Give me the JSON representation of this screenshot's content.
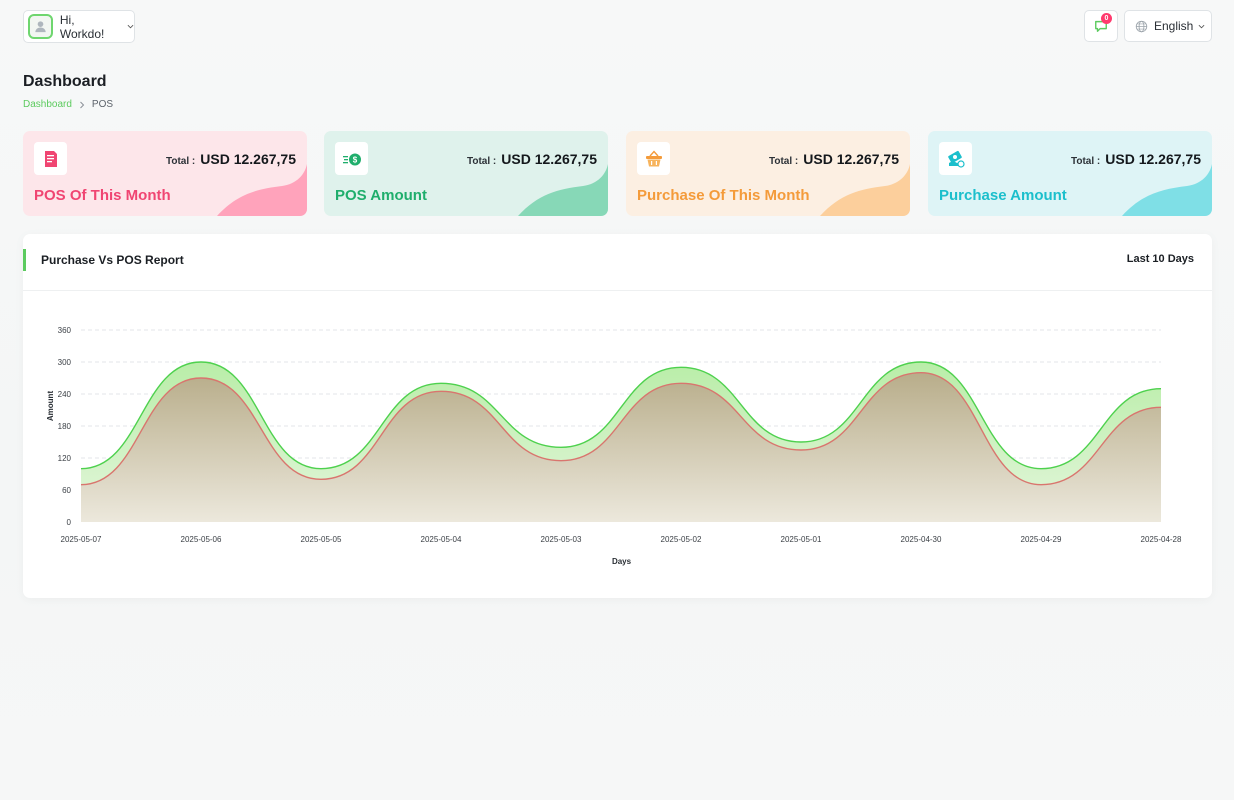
{
  "header": {
    "greeting": "Hi, Workdo!",
    "notifications_count": "0",
    "language": "English"
  },
  "page": {
    "title": "Dashboard",
    "breadcrumb": [
      "Dashboard",
      "POS"
    ]
  },
  "colors": {
    "accent": "#5ccb5f",
    "pos_green_line": "#4ed14e",
    "pos_red_line": "#d9756e"
  },
  "cards": [
    {
      "title": "POS Of This Month",
      "total_label": "Total :",
      "total_value": "USD 12.267,75",
      "icon": "invoice-icon",
      "bg": "#fde6ea",
      "wave": "#ffa3bb",
      "title_color": "#f04572"
    },
    {
      "title": "POS Amount",
      "total_label": "Total :",
      "total_value": "USD 12.267,75",
      "icon": "money-icon",
      "bg": "#dff2ec",
      "wave": "#87d8b7",
      "title_color": "#1fae6c"
    },
    {
      "title": "Purchase Of This Month",
      "total_label": "Total :",
      "total_value": "USD 12.267,75",
      "icon": "basket-icon",
      "bg": "#fcefe2",
      "wave": "#fccf9c",
      "title_color": "#f49b3a"
    },
    {
      "title": "Purchase Amount",
      "total_label": "Total :",
      "total_value": "USD 12.267,75",
      "icon": "cash-icon",
      "bg": "#def4f6",
      "wave": "#7fdfe6",
      "title_color": "#1cbfcc"
    }
  ],
  "report": {
    "title": "Purchase Vs POS Report",
    "range": "Last 10 Days"
  },
  "chart_data": {
    "type": "area",
    "xlabel": "Days",
    "ylabel": "Amount",
    "ylim": [
      0,
      360
    ],
    "yticks": [
      0,
      60,
      120,
      180,
      240,
      300,
      360
    ],
    "grid": true,
    "categories": [
      "2025-05-07",
      "2025-05-06",
      "2025-05-05",
      "2025-05-04",
      "2025-05-03",
      "2025-05-02",
      "2025-05-01",
      "2025-04-30",
      "2025-04-29",
      "2025-04-28"
    ],
    "series": [
      {
        "values": [
          100,
          300,
          100,
          260,
          140,
          290,
          150,
          300,
          100,
          250
        ],
        "color": "#4ed14e"
      },
      {
        "values": [
          70,
          270,
          80,
          245,
          115,
          260,
          135,
          280,
          70,
          215
        ],
        "color": "#d9756e"
      }
    ]
  }
}
